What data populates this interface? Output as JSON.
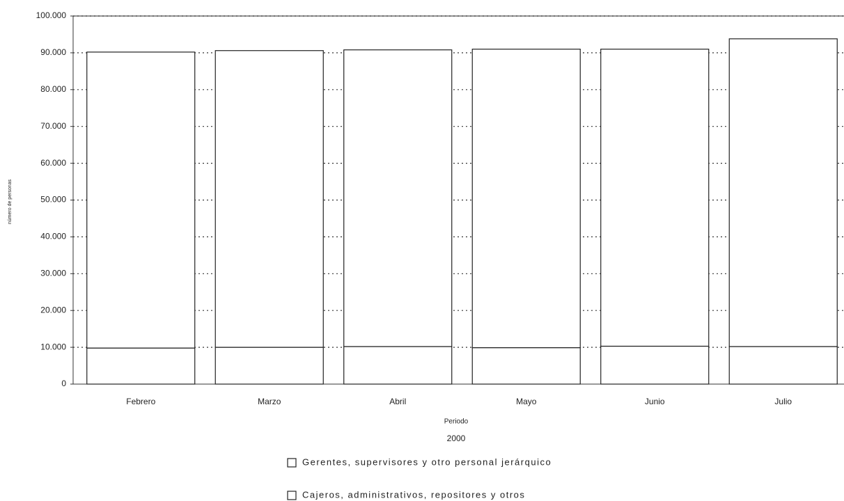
{
  "chart_data": {
    "type": "stacked_bar",
    "y_label": "número de personas",
    "x_label": "Periodo",
    "subtitle": "2000",
    "categories": [
      "Febrero",
      "Marzo",
      "Abril",
      "Mayo",
      "Junio",
      "Julio"
    ],
    "series": [
      {
        "name": "Gerentes, supervisores y otro personal jerárquico",
        "color": "#ffffff",
        "values": [
          9800,
          10000,
          10200,
          9900,
          10300,
          10200
        ]
      },
      {
        "name": "Cajeros, administrativos, repositores y otros",
        "color": "#ffffff",
        "values": [
          80400,
          80600,
          80600,
          81100,
          80700,
          83600
        ]
      }
    ],
    "ylim": [
      0,
      100000
    ],
    "yticks": [
      0,
      {
        "value": 10000,
        "label": "10.000"
      },
      {
        "value": 20000,
        "label": "20.000"
      },
      {
        "value": 30000,
        "label": "30.000"
      },
      {
        "value": 40000,
        "label": "40.000"
      },
      {
        "value": 50000,
        "label": "50.000"
      },
      {
        "value": 60000,
        "label": "60.000"
      },
      {
        "value": 70000,
        "label": "70.000"
      },
      {
        "value": 80000,
        "label": "80.000"
      },
      {
        "value": 90000,
        "label": "90.000"
      },
      {
        "value": 100000,
        "label": "100.000"
      }
    ],
    "grid": true
  }
}
